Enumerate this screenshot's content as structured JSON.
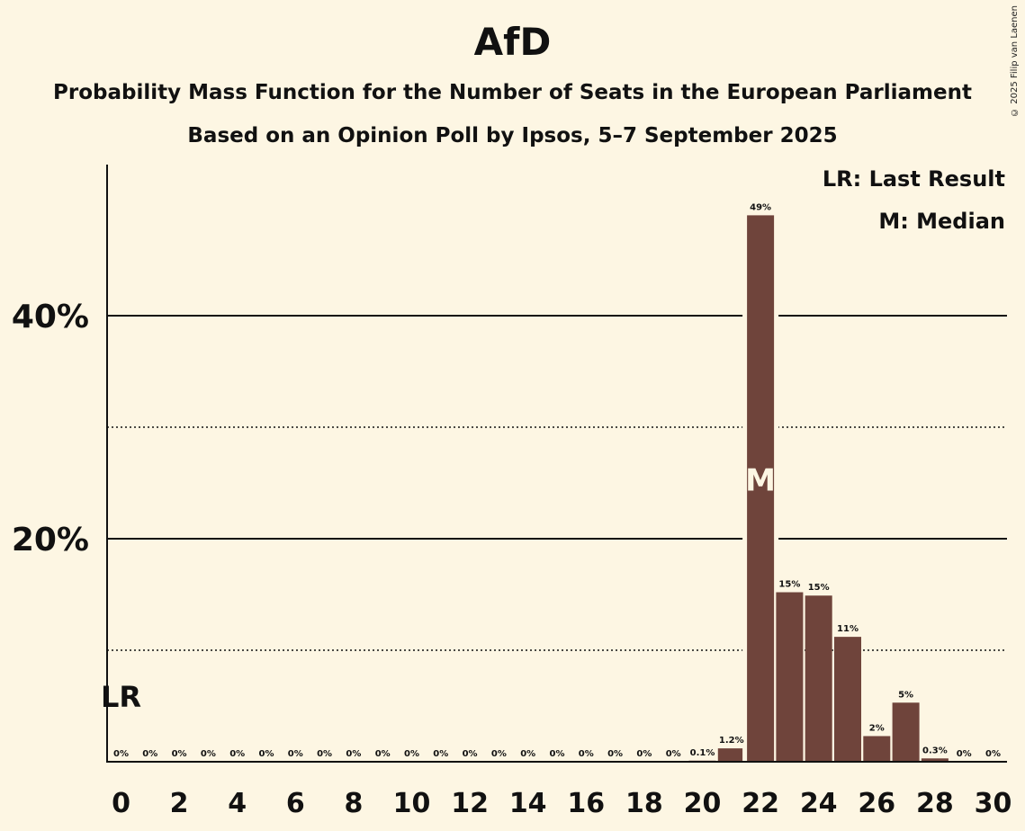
{
  "chart_data": {
    "type": "bar",
    "title": "AfD",
    "subtitle_1": "Probability Mass Function for the Number of Seats in the European Parliament",
    "subtitle_2": "Based on an Opinion Poll by Ipsos, 5–7 September 2025",
    "copyright": "© 2025 Filip van Laenen",
    "legend": {
      "lr": "LR: Last Result",
      "m": "M: Median",
      "placement": "top-right"
    },
    "x": [
      0,
      1,
      2,
      3,
      4,
      5,
      6,
      7,
      8,
      9,
      10,
      11,
      12,
      13,
      14,
      15,
      16,
      17,
      18,
      19,
      20,
      21,
      22,
      23,
      24,
      25,
      26,
      27,
      28,
      29,
      30
    ],
    "values": [
      0,
      0,
      0,
      0,
      0,
      0,
      0,
      0,
      0,
      0,
      0,
      0,
      0,
      0,
      0,
      0,
      0,
      0,
      0,
      0,
      0.1,
      1.2,
      49,
      15.2,
      14.9,
      11.2,
      2.3,
      5.3,
      0.3,
      0,
      0
    ],
    "bar_labels": [
      "0%",
      "0%",
      "0%",
      "0%",
      "0%",
      "0%",
      "0%",
      "0%",
      "0%",
      "0%",
      "0%",
      "0%",
      "0%",
      "0%",
      "0%",
      "0%",
      "0%",
      "0%",
      "0%",
      "0%",
      "0.1%",
      "1.2%",
      "49%",
      "15%",
      "15%",
      "11%",
      "2%",
      "5%",
      "0.3%",
      "0%",
      "0%"
    ],
    "x_tick_labels": [
      "0",
      "2",
      "4",
      "6",
      "8",
      "10",
      "12",
      "14",
      "16",
      "18",
      "20",
      "22",
      "24",
      "26",
      "28",
      "30"
    ],
    "x_tick_values": [
      0,
      2,
      4,
      6,
      8,
      10,
      12,
      14,
      16,
      18,
      20,
      22,
      24,
      26,
      28,
      30
    ],
    "y_tick_labels": [
      "20%",
      "40%"
    ],
    "y_tick_values": [
      20,
      40
    ],
    "y_dotted_values": [
      10,
      30
    ],
    "ylim": [
      0,
      53.5
    ],
    "last_result_seat": 0,
    "last_result_label": "LR",
    "median_seat": 22,
    "median_label": "M",
    "xlabel": "",
    "ylabel": "",
    "grid": true,
    "colors": {
      "bar": "#6f443b",
      "background": "#fdf6e3",
      "axis": "#111111"
    }
  }
}
